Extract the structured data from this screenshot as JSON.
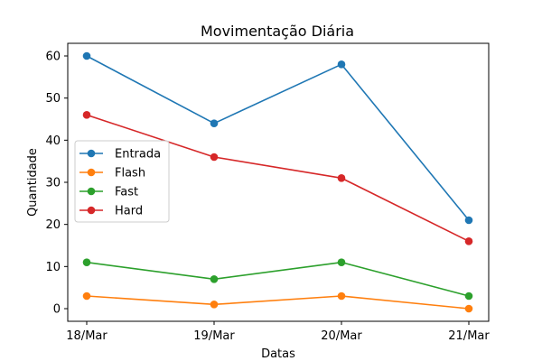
{
  "chart_data": {
    "type": "line",
    "title": "Movimentação Diária",
    "xlabel": "Datas",
    "ylabel": "Quantidade",
    "categories": [
      "18/Mar",
      "19/Mar",
      "20/Mar",
      "21/Mar"
    ],
    "ylim": [
      -3,
      63
    ],
    "yticks": [
      0,
      10,
      20,
      30,
      40,
      50,
      60
    ],
    "grid": false,
    "legend_position": "center-left",
    "marker": "circle",
    "series": [
      {
        "name": "Entrada",
        "color": "#1f77b4",
        "values": [
          60,
          44,
          58,
          21
        ]
      },
      {
        "name": "Flash",
        "color": "#ff7f0e",
        "values": [
          3,
          1,
          3,
          0
        ]
      },
      {
        "name": "Fast",
        "color": "#2ca02c",
        "values": [
          11,
          7,
          11,
          3
        ]
      },
      {
        "name": "Hard",
        "color": "#d62728",
        "values": [
          46,
          36,
          31,
          16
        ]
      }
    ]
  }
}
